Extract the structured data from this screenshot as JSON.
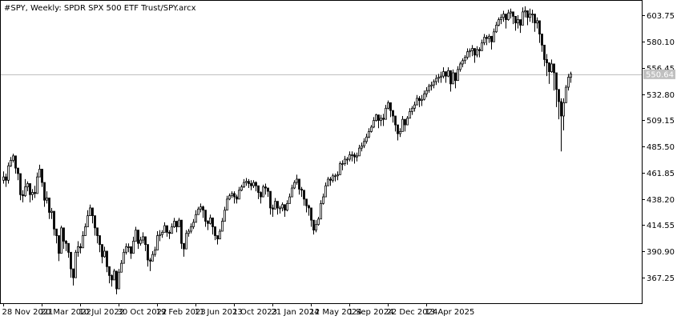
{
  "header": {
    "symbol": "#SPY",
    "timeframe": "Weekly",
    "description": "SPDR SPX 500 ETF Trust/SPY.arcx"
  },
  "colors": {
    "background": "#ffffff",
    "frame": "#000000",
    "candle": "#000000",
    "price_line": "#c0c0c0",
    "price_tag": "#c0c0c0"
  },
  "chart_data": {
    "type": "candlestick",
    "title": "#SPY, Weekly:  SPDR SPX 500 ETF Trust/SPY.arcx",
    "y_ticks": [
      603.75,
      580.1,
      556.45,
      532.8,
      509.15,
      485.5,
      461.85,
      438.2,
      414.55,
      390.9,
      367.25
    ],
    "ylim": [
      344,
      617
    ],
    "x_ticks": [
      "28 Nov 2021",
      "20 Mar 2022",
      "10 Jul 2022",
      "30 Oct 2022",
      "19 Feb 2023",
      "11 Jun 2023",
      "1 Oct 2023",
      "21 Jan 2024",
      "12 May 2024",
      "1 Sep 2024",
      "22 Dec 2024",
      "13 Apr 2025"
    ],
    "current_price": 550.64,
    "current_price_label": "550.64",
    "grid": false,
    "weeks_between_ticks": 16,
    "closes": [
      458,
      455,
      468,
      473,
      477,
      466,
      461,
      442,
      441,
      449,
      452,
      442,
      444,
      443,
      458,
      465,
      453,
      437,
      439,
      426,
      427,
      411,
      405,
      389,
      412,
      400,
      398,
      390,
      375,
      367,
      390,
      395,
      394,
      405,
      413,
      423,
      430,
      423,
      412,
      405,
      397,
      386,
      391,
      377,
      369,
      365,
      373,
      357,
      372,
      380,
      390,
      395,
      395,
      389,
      400,
      410,
      398,
      401,
      404,
      397,
      383,
      382,
      388,
      392,
      405,
      406,
      408,
      414,
      408,
      407,
      413,
      418,
      413,
      419,
      398,
      393,
      407,
      409,
      413,
      417,
      424,
      429,
      431,
      428,
      418,
      416,
      421,
      413,
      405,
      402,
      409,
      418,
      428,
      438,
      441,
      443,
      440,
      438,
      446,
      449,
      453,
      454,
      452,
      450,
      453,
      450,
      444,
      440,
      449,
      448,
      445,
      430,
      429,
      436,
      430,
      430,
      433,
      428,
      434,
      440,
      448,
      453,
      456,
      447,
      446,
      438,
      432,
      430,
      419,
      410,
      415,
      420,
      434,
      440,
      450,
      456,
      455,
      459,
      459,
      460,
      470,
      470,
      474,
      474,
      478,
      478,
      476,
      477,
      484,
      486,
      490,
      494,
      499,
      503,
      509,
      514,
      509,
      511,
      510,
      520,
      525,
      518,
      513,
      505,
      497,
      499,
      510,
      505,
      511,
      517,
      520,
      523,
      529,
      527,
      528,
      533,
      536,
      540,
      541,
      544,
      547,
      548,
      549,
      553,
      549,
      554,
      542,
      552,
      545,
      555,
      560,
      563,
      566,
      571,
      572,
      574,
      568,
      573,
      572,
      579,
      584,
      583,
      585,
      580,
      589,
      595,
      600,
      602,
      605,
      600,
      606,
      607,
      603,
      597,
      600,
      595,
      607,
      608,
      602,
      605,
      605,
      597,
      599,
      587,
      577,
      564,
      561,
      553,
      560,
      552,
      537,
      526,
      513,
      525,
      539,
      548,
      551
    ],
    "highs": [
      463,
      461,
      471,
      476,
      479,
      472,
      466,
      446,
      446,
      456,
      454,
      448,
      447,
      450,
      462,
      469,
      459,
      442,
      445,
      432,
      430,
      417,
      409,
      398,
      414,
      407,
      401,
      396,
      381,
      373,
      392,
      400,
      398,
      409,
      416,
      428,
      433,
      427,
      418,
      409,
      400,
      391,
      395,
      383,
      372,
      370,
      375,
      367,
      375,
      383,
      393,
      398,
      398,
      393,
      404,
      413,
      404,
      404,
      408,
      403,
      388,
      385,
      391,
      395,
      409,
      410,
      410,
      417,
      412,
      410,
      416,
      421,
      417,
      421,
      407,
      397,
      410,
      411,
      416,
      420,
      428,
      431,
      434,
      432,
      423,
      419,
      424,
      418,
      408,
      405,
      411,
      421,
      431,
      441,
      443,
      445,
      445,
      442,
      449,
      451,
      456,
      457,
      456,
      455,
      455,
      454,
      448,
      445,
      451,
      452,
      448,
      435,
      433,
      439,
      434,
      432,
      435,
      432,
      437,
      443,
      451,
      455,
      460,
      451,
      449,
      443,
      436,
      433,
      423,
      412,
      419,
      422,
      437,
      443,
      453,
      458,
      458,
      461,
      461,
      463,
      472,
      473,
      477,
      476,
      481,
      481,
      480,
      480,
      487,
      489,
      493,
      497,
      502,
      505,
      512,
      515,
      514,
      514,
      515,
      523,
      527,
      523,
      516,
      509,
      503,
      502,
      513,
      509,
      513,
      520,
      522,
      526,
      532,
      531,
      532,
      536,
      539,
      542,
      544,
      546,
      550,
      551,
      553,
      557,
      552,
      557,
      549,
      555,
      549,
      558,
      562,
      565,
      568,
      574,
      574,
      577,
      573,
      576,
      575,
      582,
      587,
      586,
      587,
      583,
      592,
      598,
      602,
      605,
      608,
      604,
      609,
      610,
      606,
      603,
      604,
      599,
      611,
      612,
      606,
      610,
      609,
      602,
      602,
      592,
      582,
      572,
      569,
      559,
      564,
      555,
      543,
      533,
      529,
      529,
      541,
      551,
      553
    ],
    "lows": [
      452,
      449,
      452,
      467,
      471,
      461,
      455,
      437,
      435,
      440,
      445,
      435,
      437,
      439,
      452,
      459,
      449,
      431,
      434,
      420,
      420,
      405,
      398,
      382,
      402,
      393,
      391,
      385,
      367,
      360,
      378,
      386,
      389,
      397,
      406,
      417,
      423,
      416,
      405,
      398,
      390,
      380,
      385,
      372,
      362,
      359,
      366,
      352,
      362,
      372,
      384,
      388,
      390,
      384,
      392,
      402,
      393,
      396,
      398,
      391,
      377,
      373,
      382,
      386,
      398,
      400,
      403,
      408,
      404,
      402,
      408,
      412,
      408,
      414,
      393,
      386,
      399,
      404,
      407,
      411,
      418,
      425,
      426,
      421,
      413,
      410,
      415,
      406,
      401,
      397,
      403,
      412,
      422,
      432,
      437,
      439,
      434,
      434,
      439,
      445,
      448,
      450,
      448,
      446,
      448,
      445,
      438,
      434,
      443,
      442,
      440,
      424,
      422,
      429,
      424,
      425,
      427,
      422,
      427,
      435,
      442,
      447,
      451,
      442,
      440,
      432,
      426,
      423,
      413,
      406,
      408,
      414,
      428,
      433,
      444,
      450,
      450,
      453,
      454,
      455,
      463,
      464,
      468,
      469,
      472,
      472,
      470,
      472,
      478,
      481,
      484,
      488,
      493,
      498,
      502,
      508,
      502,
      504,
      504,
      513,
      519,
      512,
      507,
      499,
      491,
      494,
      504,
      499,
      505,
      511,
      514,
      517,
      523,
      521,
      522,
      527,
      530,
      534,
      536,
      538,
      541,
      543,
      543,
      547,
      543,
      548,
      535,
      545,
      538,
      548,
      553,
      557,
      560,
      564,
      566,
      567,
      561,
      566,
      566,
      572,
      577,
      577,
      579,
      573,
      582,
      588,
      594,
      596,
      598,
      592,
      599,
      601,
      596,
      590,
      592,
      588,
      600,
      602,
      595,
      598,
      597,
      589,
      592,
      579,
      571,
      558,
      549,
      542,
      552,
      536,
      521,
      510,
      481,
      500,
      530,
      536,
      543
    ]
  }
}
